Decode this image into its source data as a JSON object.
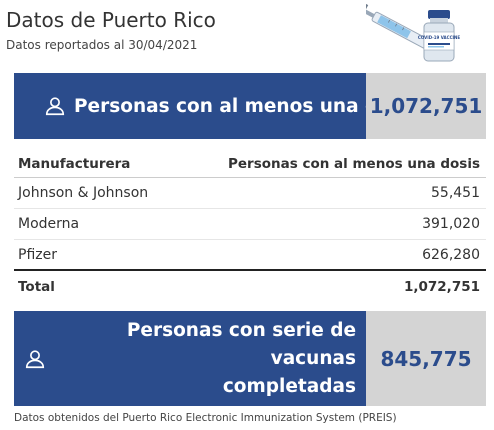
{
  "header": {
    "title": "Datos de Puerto Rico",
    "subtitle": "Datos reportados al 30/04/2021",
    "vaccine_label": "COVID-19 VACCINE"
  },
  "summary_first_dose": {
    "icon": "person-outline-icon",
    "label": "Personas con al menos una dosis",
    "value": "1,072,751"
  },
  "table": {
    "columns": [
      "Manufacturera",
      "Personas con al menos una dosis"
    ],
    "rows": [
      [
        "Johnson & Johnson",
        "55,451"
      ],
      [
        "Moderna",
        "391,020"
      ],
      [
        "Pfizer",
        "626,280"
      ]
    ],
    "total": [
      "Total",
      "1,072,751"
    ]
  },
  "summary_complete": {
    "icon": "person-outline-icon",
    "label_line1": "Personas con serie de vacunas",
    "label_line2": "completadas",
    "value": "845,775"
  },
  "footnote": "Datos obtenidos del Puerto Rico Electronic Immunization System (PREIS)",
  "colors": {
    "banner_blue": "#2b4c8c",
    "value_panel": "#d4d4d4",
    "value_text": "#2b4c8c"
  }
}
